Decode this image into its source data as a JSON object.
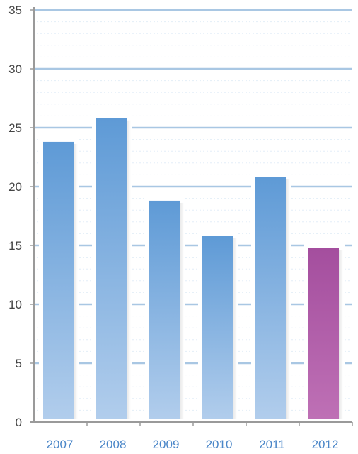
{
  "chart_data": {
    "type": "bar",
    "title": "",
    "xlabel": "",
    "ylabel": "",
    "categories": [
      "2007",
      "2008",
      "2009",
      "2010",
      "2011",
      "2012"
    ],
    "values": [
      23.8,
      25.8,
      18.8,
      15.8,
      20.8,
      14.8
    ],
    "ylim": [
      0,
      35
    ],
    "yticks": [
      0,
      5,
      10,
      15,
      20,
      25,
      30,
      35
    ],
    "grid": true,
    "legend": "none",
    "colors": {
      "bar_top": "#5e9ad6",
      "bar_bottom": "#b1cdec",
      "highlight_top": "#a44e9e",
      "highlight_bottom": "#be70b5",
      "gridline": "#a9c7e3",
      "axis": "#9a9a9a",
      "ytick_text": "#444444",
      "xtick_text": "#4a86c8"
    },
    "highlight_index": 5
  }
}
